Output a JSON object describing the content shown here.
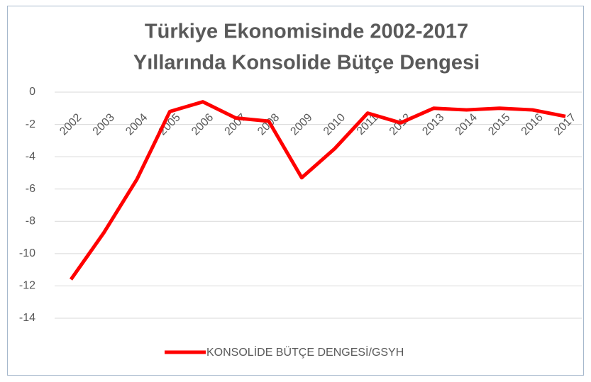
{
  "chart_data": {
    "type": "line",
    "title": [
      "Türkiye Ekonomisinde 2002-2017",
      "Yıllarında Konsolide Bütçe Dengesi"
    ],
    "categories": [
      "2002",
      "2003",
      "2004",
      "2005",
      "2006",
      "2007",
      "2008",
      "2009",
      "2010",
      "2011",
      "2012",
      "2013",
      "2014",
      "2015",
      "2016",
      "2017"
    ],
    "series": [
      {
        "name": "KONSOLİDE BÜTÇE DENGESİ/GSYH",
        "color": "#ff0000",
        "values": [
          -11.6,
          -8.7,
          -5.4,
          -1.2,
          -0.6,
          -1.6,
          -1.8,
          -5.3,
          -3.5,
          -1.3,
          -1.9,
          -1.0,
          -1.1,
          -1.0,
          -1.1,
          -1.5
        ]
      }
    ],
    "ylim": [
      -14,
      0
    ],
    "yticks": [
      0,
      -2,
      -4,
      -6,
      -8,
      -10,
      -12,
      -14
    ],
    "grid": true,
    "legend": "bottom"
  }
}
